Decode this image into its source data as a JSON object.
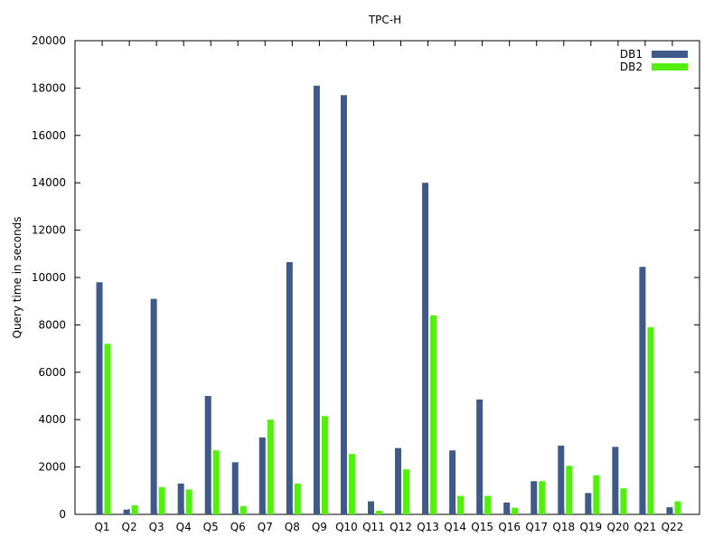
{
  "chart_data": {
    "type": "bar",
    "title": "TPC-H",
    "xlabel": "",
    "ylabel": "Query time in seconds",
    "ylim": [
      0,
      20000
    ],
    "yticks": [
      0,
      2000,
      4000,
      6000,
      8000,
      10000,
      12000,
      14000,
      16000,
      18000,
      20000
    ],
    "categories": [
      "Q1",
      "Q2",
      "Q3",
      "Q4",
      "Q5",
      "Q6",
      "Q7",
      "Q8",
      "Q9",
      "Q10",
      "Q11",
      "Q12",
      "Q13",
      "Q14",
      "Q15",
      "Q16",
      "Q17",
      "Q18",
      "Q19",
      "Q20",
      "Q21",
      "Q22"
    ],
    "series": [
      {
        "name": "DB1",
        "color": "#3e5a8a",
        "values": [
          9800,
          200,
          9100,
          1300,
          5000,
          2200,
          3250,
          10650,
          18100,
          17700,
          550,
          2800,
          14000,
          2700,
          4850,
          500,
          1400,
          2900,
          900,
          2850,
          10450,
          300
        ]
      },
      {
        "name": "DB2",
        "color": "#55ee11",
        "values": [
          7200,
          380,
          1150,
          1050,
          2700,
          350,
          4000,
          1300,
          4150,
          2550,
          150,
          1900,
          8400,
          780,
          780,
          280,
          1400,
          2050,
          1650,
          1100,
          7900,
          550
        ]
      }
    ],
    "grid": false,
    "legend_position": "top-right"
  }
}
